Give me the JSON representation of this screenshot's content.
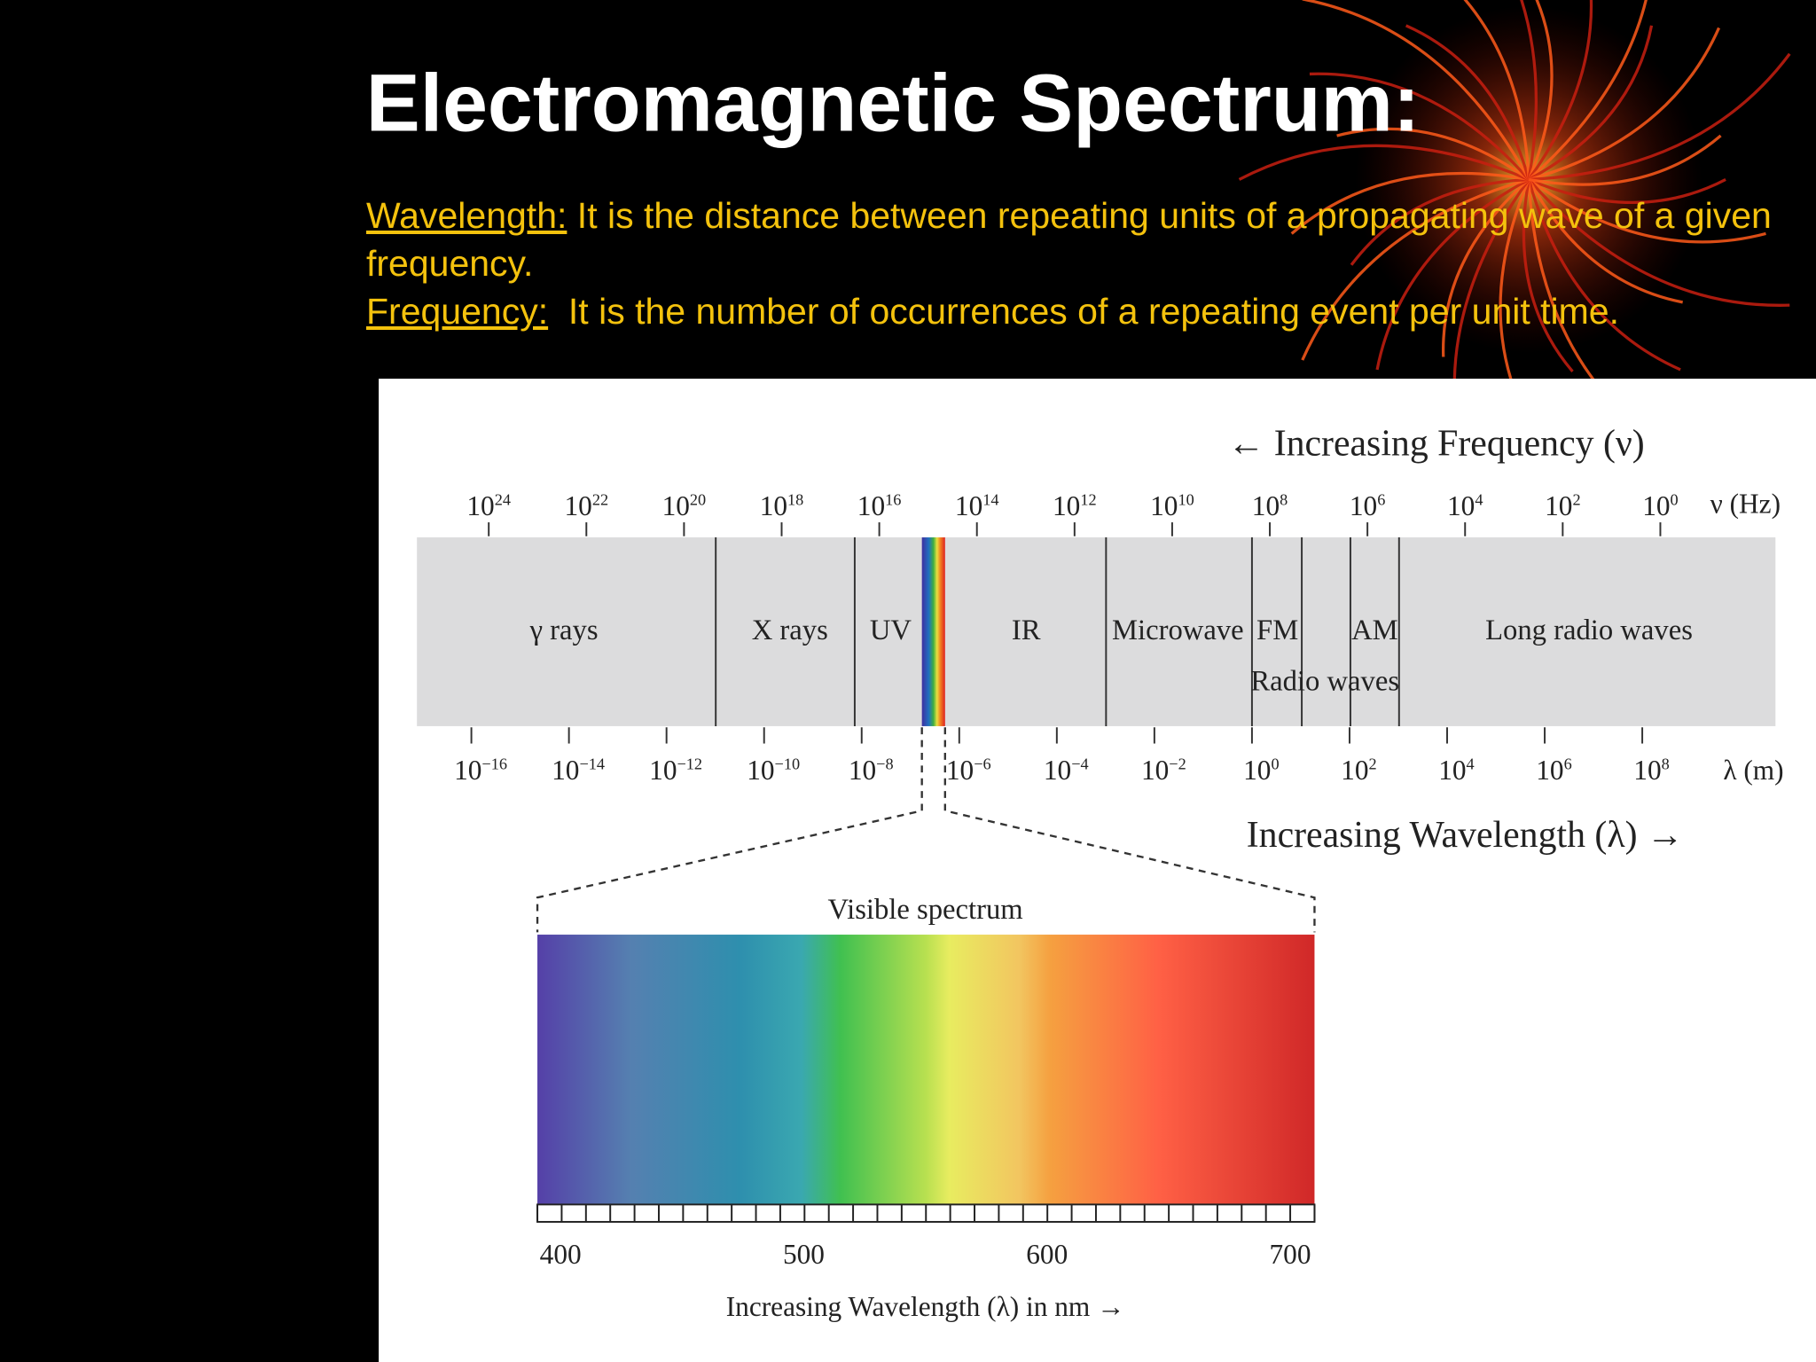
{
  "slide": {
    "title": "Electromagnetic Spectrum:",
    "definitions": [
      {
        "term": "Wavelength:",
        "text": "It is the distance between repeating units of a propagating wave of a given frequency."
      },
      {
        "term": "Frequency:",
        "text": "It is the number of occurrences of a repeating event per unit time."
      }
    ]
  },
  "diagram": {
    "frequency_heading": "← Increasing Frequency (ν)",
    "frequency_unit": "ν (Hz)",
    "frequency_ticks": [
      {
        "base": "10",
        "exponent": "24"
      },
      {
        "base": "10",
        "exponent": "22"
      },
      {
        "base": "10",
        "exponent": "20"
      },
      {
        "base": "10",
        "exponent": "18"
      },
      {
        "base": "10",
        "exponent": "16"
      },
      {
        "base": "10",
        "exponent": "14"
      },
      {
        "base": "10",
        "exponent": "12"
      },
      {
        "base": "10",
        "exponent": "10"
      },
      {
        "base": "10",
        "exponent": "8"
      },
      {
        "base": "10",
        "exponent": "6"
      },
      {
        "base": "10",
        "exponent": "4"
      },
      {
        "base": "10",
        "exponent": "2"
      },
      {
        "base": "10",
        "exponent": "0"
      }
    ],
    "bands": [
      "γ rays",
      "X rays",
      "UV",
      "IR",
      "Microwave",
      "FM",
      "AM",
      "Long radio waves"
    ],
    "radio_label": "Radio waves",
    "wavelength_ticks": [
      {
        "base": "10",
        "exponent": "−16"
      },
      {
        "base": "10",
        "exponent": "−14"
      },
      {
        "base": "10",
        "exponent": "−12"
      },
      {
        "base": "10",
        "exponent": "−10"
      },
      {
        "base": "10",
        "exponent": "−8"
      },
      {
        "base": "10",
        "exponent": "−6"
      },
      {
        "base": "10",
        "exponent": "−4"
      },
      {
        "base": "10",
        "exponent": "−2"
      },
      {
        "base": "10",
        "exponent": "0"
      },
      {
        "base": "10",
        "exponent": "2"
      },
      {
        "base": "10",
        "exponent": "4"
      },
      {
        "base": "10",
        "exponent": "6"
      },
      {
        "base": "10",
        "exponent": "8"
      }
    ],
    "wavelength_unit": "λ (m)",
    "wavelength_heading": "Increasing Wavelength (λ) →",
    "visible": {
      "title": "Visible spectrum",
      "ticks": [
        400,
        500,
        600,
        700
      ],
      "axis_label": "Increasing Wavelength (λ) in nm →"
    }
  }
}
